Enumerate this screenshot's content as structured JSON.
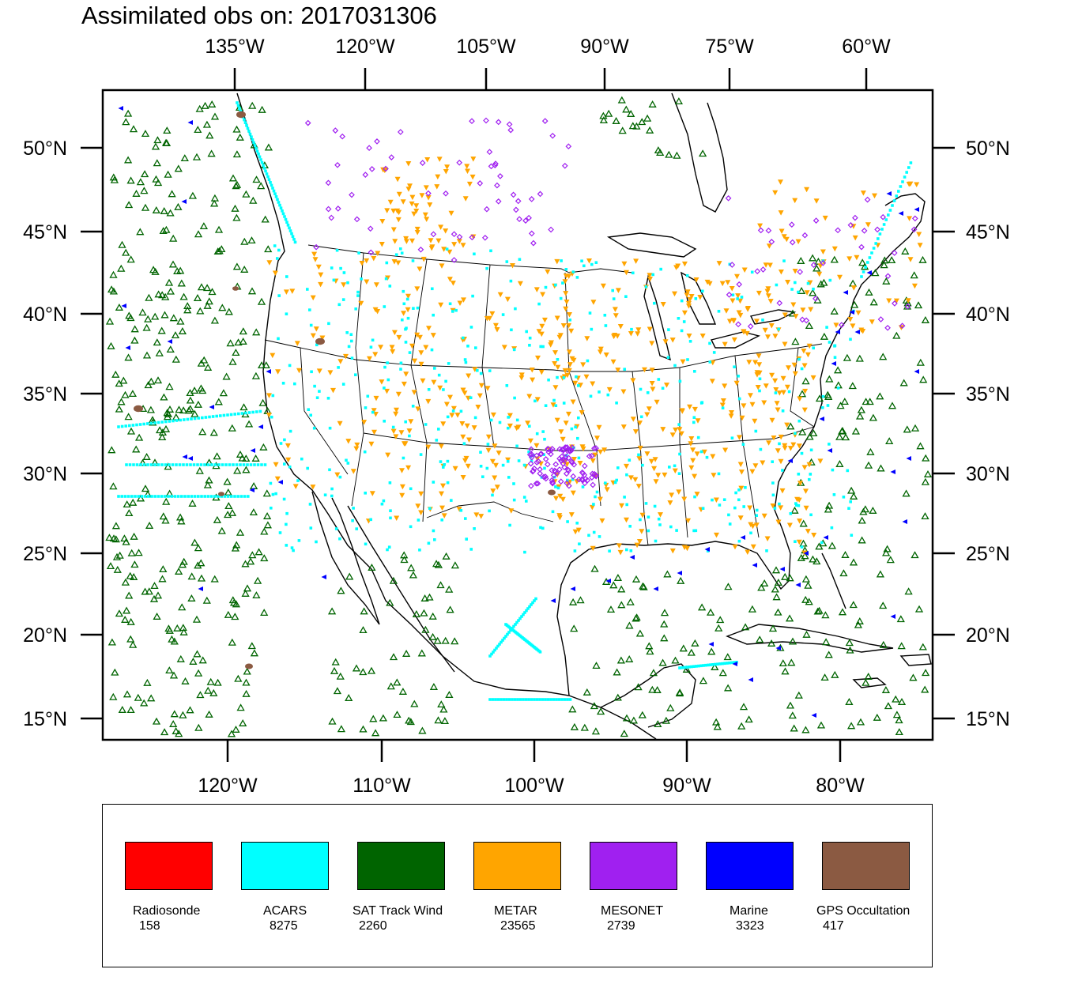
{
  "title": "Assimilated obs on: 2017031306",
  "map": {
    "projection": "lambert-conformal",
    "top_lon_labels": [
      "135°W",
      "120°W",
      "105°W",
      "90°W",
      "75°W",
      "60°W"
    ],
    "bottom_lon_labels": [
      "120°W",
      "110°W",
      "100°W",
      "90°W",
      "80°W"
    ],
    "lat_labels": [
      "50°N",
      "45°N",
      "40°N",
      "35°N",
      "30°N",
      "25°N",
      "20°N",
      "15°N"
    ],
    "region": "contiguous United States, southern Canada, Mexico, Gulf of Mexico, Caribbean"
  },
  "legend": [
    {
      "label": "Radiosonde",
      "count": "158",
      "color": "#ff0000",
      "marker": "circle-icon"
    },
    {
      "label": "ACARS",
      "count": "8275",
      "color": "#00ffff",
      "marker": "square-dot-icon"
    },
    {
      "label": "SAT Track Wind",
      "count": "2260",
      "color": "#006400",
      "marker": "triangle-up-icon"
    },
    {
      "label": "METAR",
      "count": "23565",
      "color": "#ffa500",
      "marker": "triangle-down-icon"
    },
    {
      "label": "MESONET",
      "count": "2739",
      "color": "#a020f0",
      "marker": "diamond-icon"
    },
    {
      "label": "Marine",
      "count": "3323",
      "color": "#0000ff",
      "marker": "triangle-left-icon"
    },
    {
      "label": "GPS Occultation",
      "count": "417",
      "color": "#8b5a42",
      "marker": "blob-icon"
    }
  ]
}
